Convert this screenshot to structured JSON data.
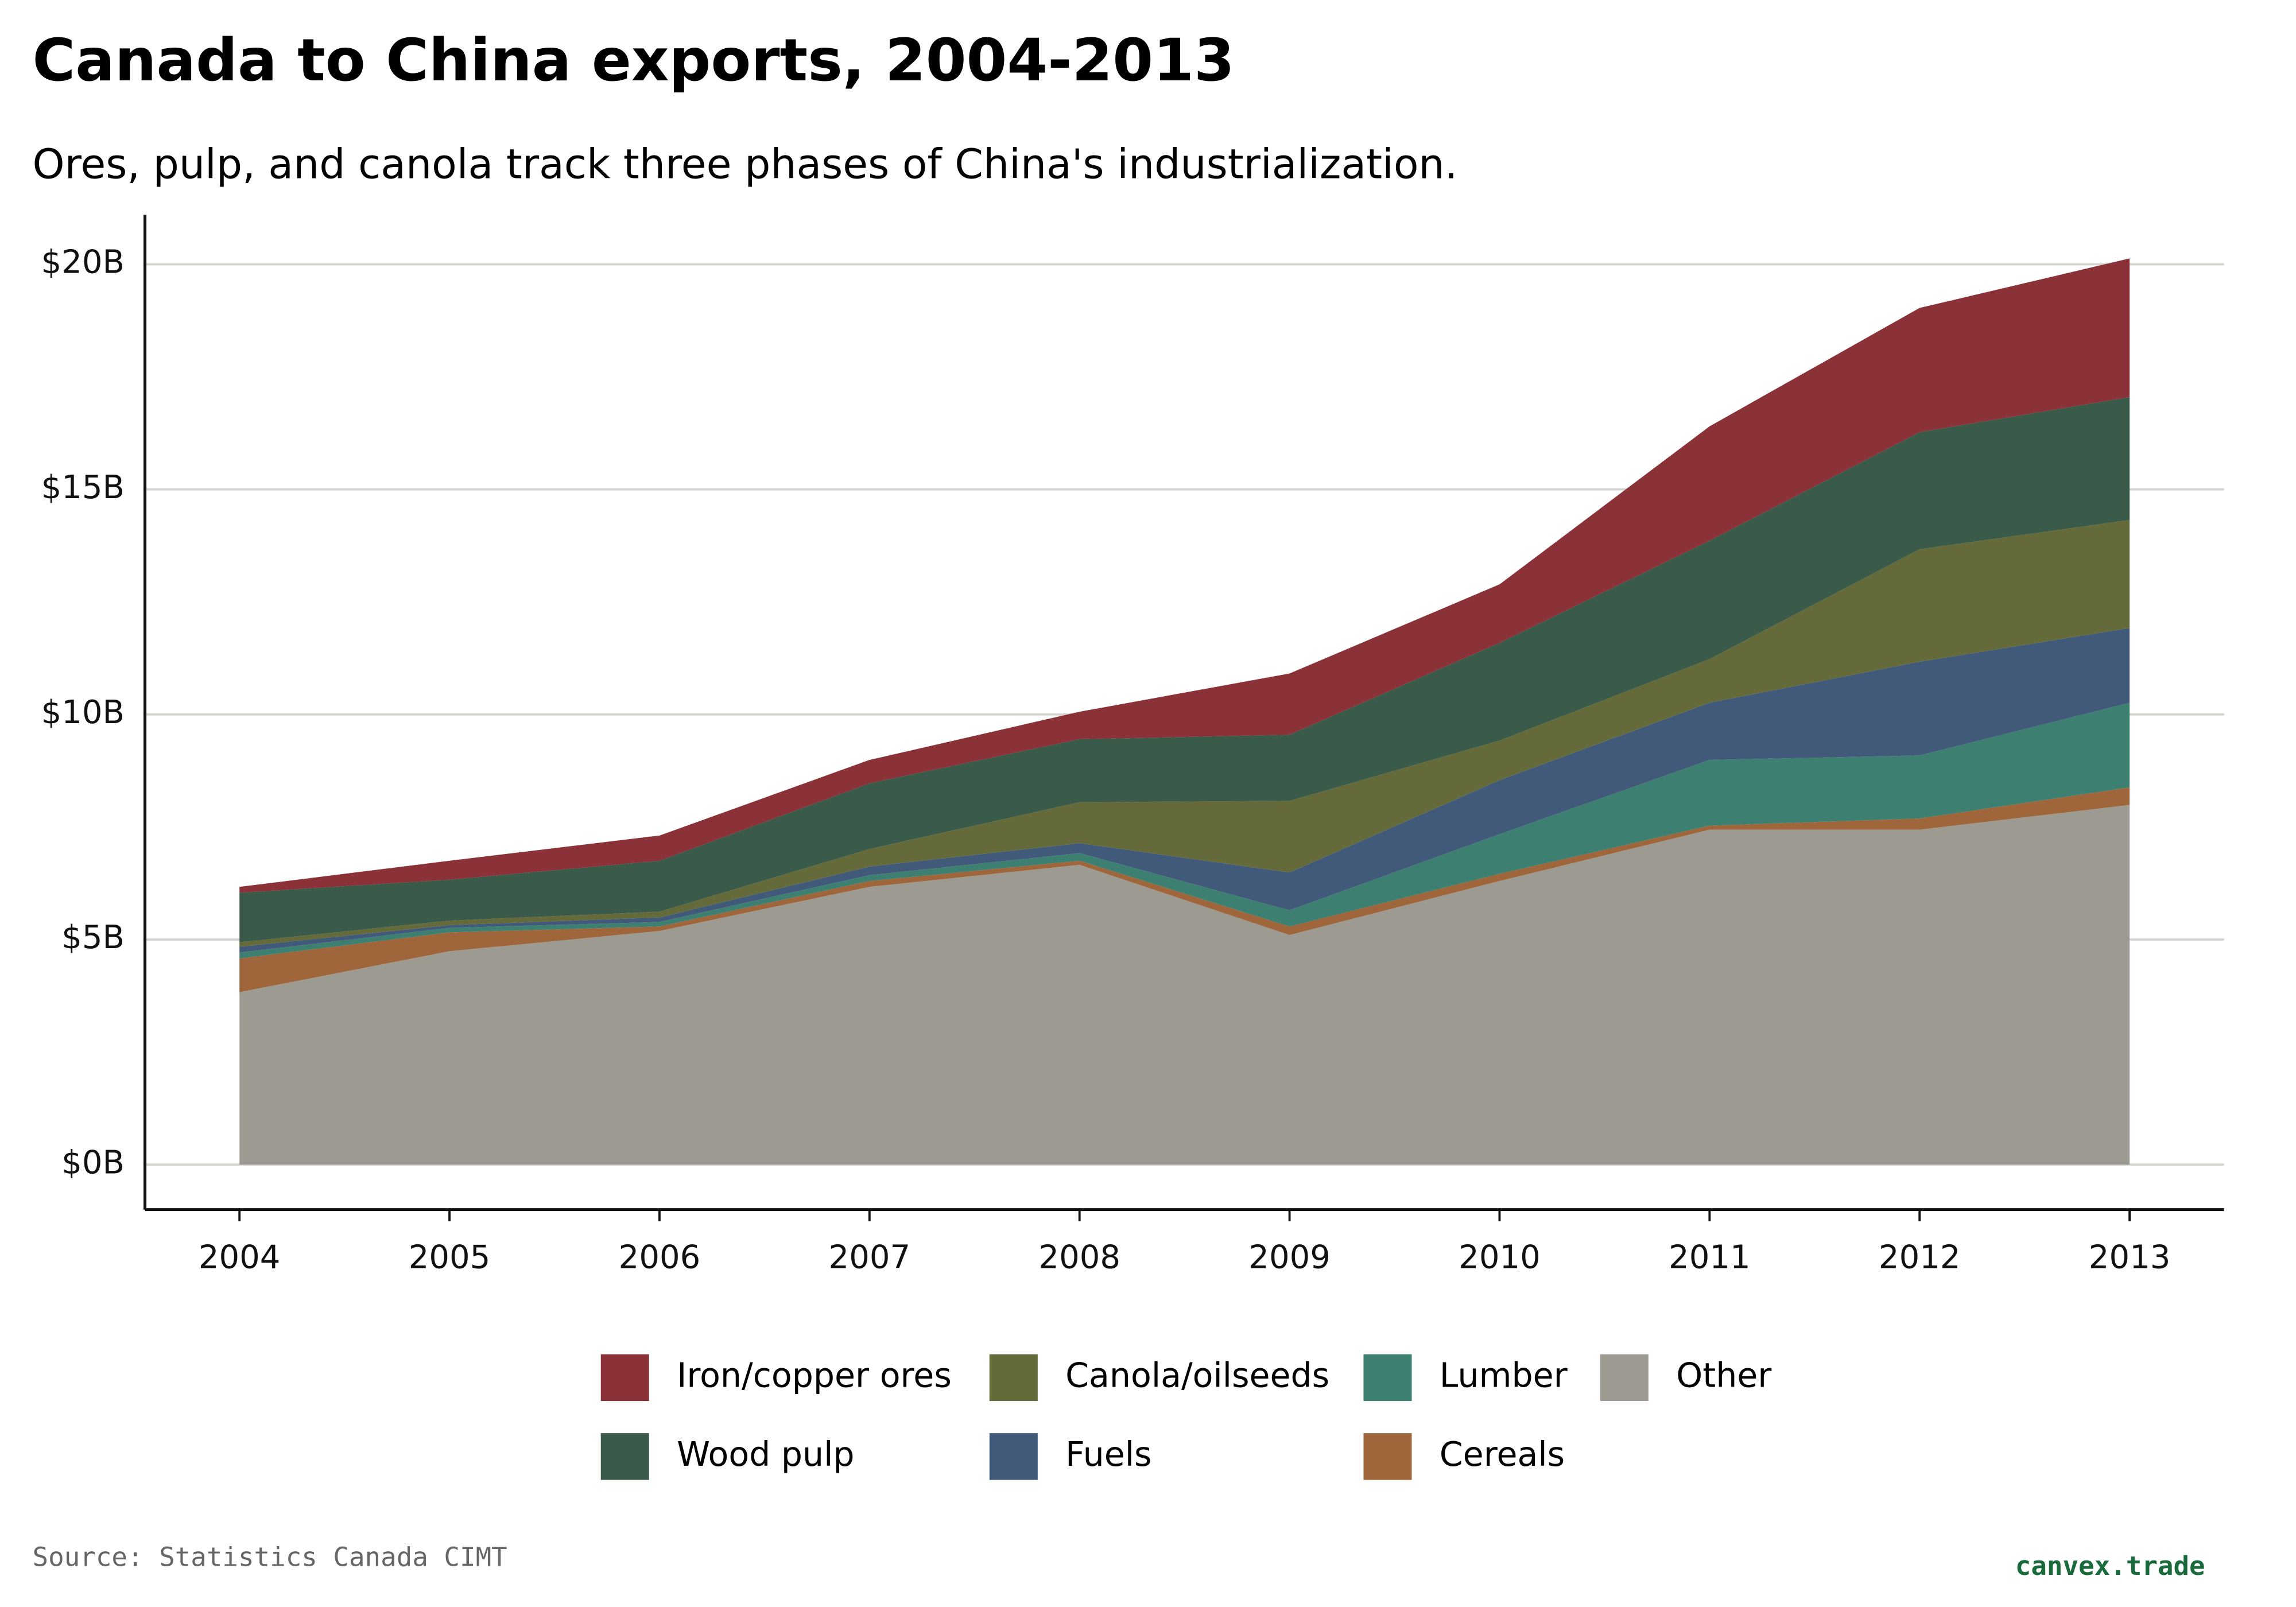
{
  "chart_data": {
    "type": "stacked-area",
    "title": "Canada to China exports, 2004-2013",
    "subtitle": "Ores, pulp, and canola track three phases of China's industrialization.",
    "source": "Source: Statistics Canada CIMT",
    "brand": "canvex.trade",
    "x": [
      2004,
      2005,
      2006,
      2007,
      2008,
      2009,
      2010,
      2011,
      2012,
      2013
    ],
    "xlim": [
      2003.55,
      2013.45
    ],
    "xticks": [
      2004,
      2005,
      2006,
      2007,
      2008,
      2009,
      2010,
      2011,
      2012,
      2013
    ],
    "ylim": [
      -1,
      21.1
    ],
    "yticks": [
      {
        "value": 0,
        "label": "$0B"
      },
      {
        "value": 5,
        "label": "$5B"
      },
      {
        "value": 10,
        "label": "$10B"
      },
      {
        "value": 15,
        "label": "$15B"
      },
      {
        "value": 20,
        "label": "$20B"
      }
    ],
    "grid": true,
    "series": [
      {
        "name": "Iron/copper ores",
        "color": "#8b3239",
        "values": [
          0.13,
          0.42,
          0.56,
          0.52,
          0.61,
          1.36,
          1.3,
          2.54,
          2.76,
          3.08
        ]
      },
      {
        "name": "Wood pulp",
        "color": "#3a5a4a",
        "values": [
          1.1,
          0.91,
          1.13,
          1.46,
          1.4,
          1.47,
          2.17,
          2.63,
          2.6,
          2.73
        ]
      },
      {
        "name": "Canola/oilseeds",
        "color": "#646a3a",
        "values": [
          0.1,
          0.1,
          0.13,
          0.39,
          0.91,
          1.59,
          0.88,
          0.97,
          2.5,
          2.4
        ]
      },
      {
        "name": "Fuels",
        "color": "#425a7a",
        "values": [
          0.13,
          0.06,
          0.1,
          0.19,
          0.22,
          0.84,
          1.2,
          1.27,
          2.08,
          1.66
        ]
      },
      {
        "name": "Lumber",
        "color": "#3d7f70",
        "values": [
          0.13,
          0.1,
          0.1,
          0.13,
          0.17,
          0.36,
          0.88,
          1.46,
          1.4,
          1.88
        ]
      },
      {
        "name": "Cereals",
        "color": "#a0663b",
        "values": [
          0.75,
          0.42,
          0.1,
          0.13,
          0.09,
          0.19,
          0.16,
          0.09,
          0.25,
          0.39
        ]
      },
      {
        "name": "Other",
        "color": "#9d9a91",
        "values": [
          3.83,
          4.74,
          5.19,
          6.17,
          6.66,
          5.1,
          6.3,
          7.44,
          7.44,
          7.99
        ]
      }
    ]
  }
}
